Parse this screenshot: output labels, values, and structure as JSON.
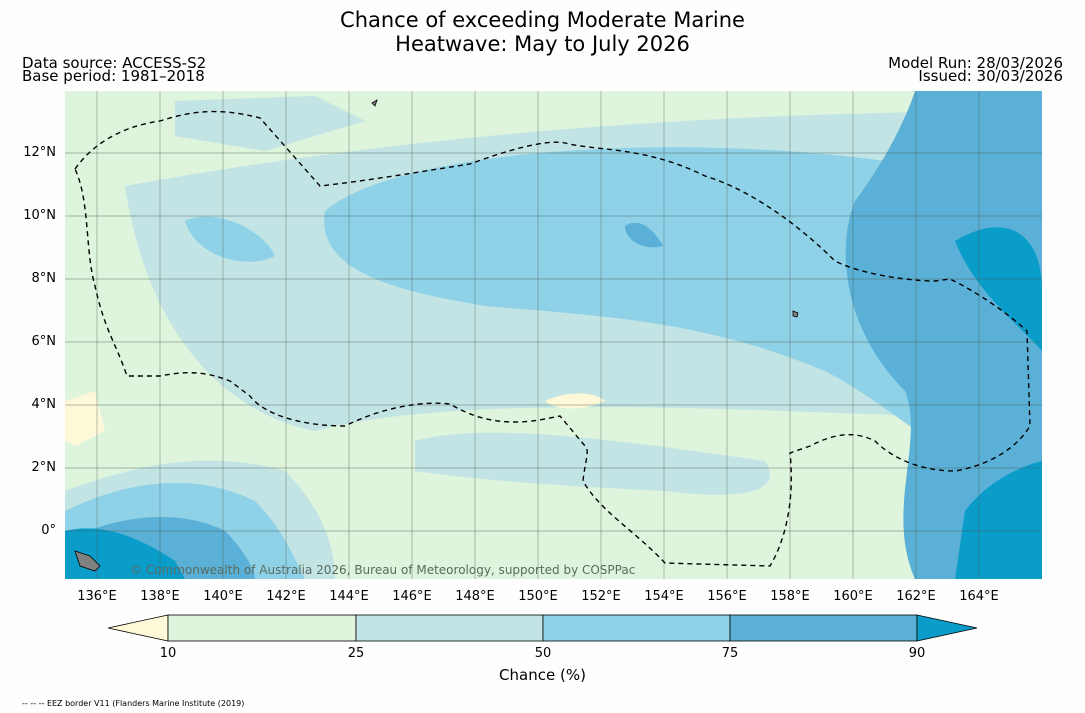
{
  "title_line1": "Chance of exceeding Moderate Marine",
  "title_line2": "Heatwave: May to July 2026",
  "data_source": "Data source: ACCESS-S2",
  "base_period": "Base period: 1981–2018",
  "model_run": "Model Run: 28/03/2026",
  "issued": "Issued: 30/03/2026",
  "copyright": "© Commonwealth of Australia 2026, Bureau of Meteorology, supported by COSPPac",
  "lat_labels": [
    "12°N",
    "10°N",
    "8°N",
    "6°N",
    "4°N",
    "2°N",
    "0°"
  ],
  "lon_labels": [
    "136°E",
    "138°E",
    "140°E",
    "142°E",
    "144°E",
    "146°E",
    "148°E",
    "150°E",
    "152°E",
    "154°E",
    "156°E",
    "158°E",
    "160°E",
    "162°E",
    "164°E"
  ],
  "colorbar": {
    "label": "Chance (%)",
    "ticks": [
      "10",
      "25",
      "50",
      "75",
      "90"
    ],
    "colors": {
      "lt10": "#fdf9d8",
      "c10_25": "#def4dc",
      "c25_50": "#c2e4e4",
      "c50_75": "#8fd2e8",
      "c75_90": "#5ab0d6",
      "gt90": "#0a9dca"
    }
  },
  "footer": "-- -- -- EEZ border V11 (Flanders Marine Institute (2019)"
}
